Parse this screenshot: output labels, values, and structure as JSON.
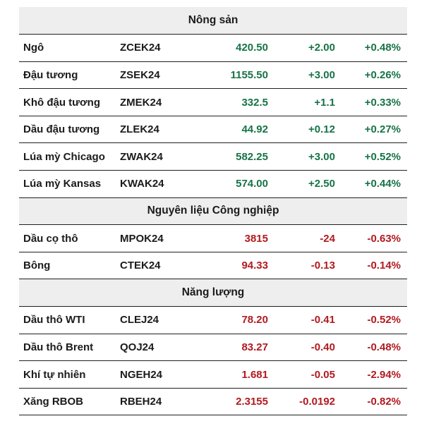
{
  "chart_data": {
    "type": "table",
    "title": "",
    "visible_column_headers": [],
    "sections": [
      {
        "header": "Nông sản",
        "rows": [
          {
            "name": "Ngô",
            "ticker": "ZCEK24",
            "price": "420.50",
            "change": "+2.00",
            "percent": "+0.48%",
            "direction": "up"
          },
          {
            "name": "Đậu tương",
            "ticker": "ZSEK24",
            "price": "1155.50",
            "change": "+3.00",
            "percent": "+0.26%",
            "direction": "up"
          },
          {
            "name": "Khô đậu tương",
            "ticker": "ZMEK24",
            "price": "332.5",
            "change": "+1.1",
            "percent": "+0.33%",
            "direction": "up"
          },
          {
            "name": "Dầu đậu tương",
            "ticker": "ZLEK24",
            "price": "44.92",
            "change": "+0.12",
            "percent": "+0.27%",
            "direction": "up"
          },
          {
            "name": "Lúa mỳ Chicago",
            "ticker": "ZWAK24",
            "price": "582.25",
            "change": "+3.00",
            "percent": "+0.52%",
            "direction": "up"
          },
          {
            "name": "Lúa mỳ Kansas",
            "ticker": "KWAK24",
            "price": "574.00",
            "change": "+2.50",
            "percent": "+0.44%",
            "direction": "up"
          }
        ]
      },
      {
        "header": "Nguyên liệu Công nghiệp",
        "rows": [
          {
            "name": "Dầu cọ thô",
            "ticker": "MPOK24",
            "price": "3815",
            "change": "-24",
            "percent": "-0.63%",
            "direction": "down"
          },
          {
            "name": "Bông",
            "ticker": "CTEK24",
            "price": "94.33",
            "change": "-0.13",
            "percent": "-0.14%",
            "direction": "down"
          }
        ]
      },
      {
        "header": "Năng lượng",
        "rows": [
          {
            "name": "Dầu thô WTI",
            "ticker": "CLEJ24",
            "price": "78.20",
            "change": "-0.41",
            "percent": "-0.52%",
            "direction": "down"
          },
          {
            "name": "Dầu thô Brent",
            "ticker": "QOJ24",
            "price": "83.27",
            "change": "-0.40",
            "percent": "-0.48%",
            "direction": "down"
          },
          {
            "name": "Khí tự nhiên",
            "ticker": "NGEH24",
            "price": "1.681",
            "change": "-0.05",
            "percent": "-2.94%",
            "direction": "down"
          },
          {
            "name": "Xăng RBOB",
            "ticker": "RBEH24",
            "price": "2.3155",
            "change": "-0.0192",
            "percent": "-0.82%",
            "direction": "down"
          }
        ]
      }
    ]
  },
  "colors": {
    "positive": "#177347",
    "negative": "#b11a20",
    "section_bg": "#eeeeee",
    "border": "#202020",
    "text": "#1b1b1b",
    "background": "#ffffff"
  }
}
